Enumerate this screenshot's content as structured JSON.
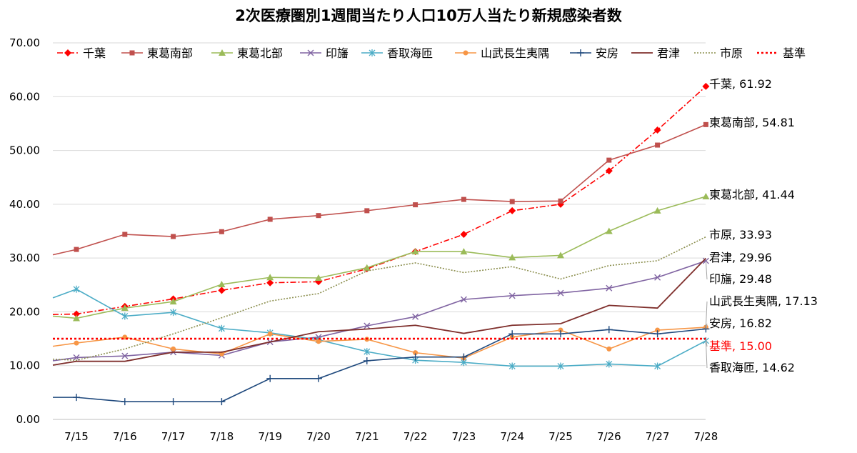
{
  "chart_data": {
    "type": "line",
    "title": "2次医療圏別1週間当たり人口10万人当たり新規感染者数",
    "categories": [
      "7/15",
      "7/16",
      "7/17",
      "7/18",
      "7/19",
      "7/20",
      "7/21",
      "7/22",
      "7/23",
      "7/24",
      "7/25",
      "7/26",
      "7/27",
      "7/28"
    ],
    "y_ticks": [
      "0.00",
      "10.00",
      "20.00",
      "30.00",
      "40.00",
      "50.00",
      "60.00",
      "70.00"
    ],
    "ylim": [
      0,
      70
    ],
    "grid": true,
    "legend_position": "top",
    "series": [
      {
        "name": "千葉",
        "color": "#ff0000",
        "marker": "diamond",
        "dash": "8,3,2,3",
        "width": 1.6,
        "lead": 19.5,
        "values": [
          19.6,
          21.0,
          22.4,
          24.0,
          25.4,
          25.6,
          28.0,
          31.2,
          34.4,
          38.8,
          40.0,
          46.2,
          53.8,
          61.92
        ],
        "end_label": "千葉, 61.92",
        "end_label_color": "#000000"
      },
      {
        "name": "東葛南部",
        "color": "#c0504d",
        "marker": "square",
        "dash": "",
        "width": 1.6,
        "lead": 30.6,
        "values": [
          31.6,
          34.4,
          34.0,
          34.9,
          37.2,
          37.9,
          38.8,
          39.9,
          40.9,
          40.5,
          40.6,
          48.2,
          51.0,
          54.81
        ],
        "end_label": "東葛南部, 54.81",
        "end_label_color": "#000000"
      },
      {
        "name": "東葛北部",
        "color": "#9bbb59",
        "marker": "triangle",
        "dash": "",
        "width": 1.6,
        "lead": 19.2,
        "values": [
          18.8,
          20.7,
          21.9,
          25.1,
          26.4,
          26.3,
          28.2,
          31.2,
          31.2,
          30.1,
          30.5,
          35.0,
          38.8,
          41.44
        ],
        "end_label": "東葛北部, 41.44",
        "end_label_color": "#000000"
      },
      {
        "name": "印旛",
        "color": "#8064a2",
        "marker": "x",
        "dash": "",
        "width": 1.6,
        "lead": 10.9,
        "values": [
          11.5,
          11.8,
          12.5,
          11.9,
          14.4,
          15.3,
          17.4,
          19.1,
          22.3,
          23.0,
          23.5,
          24.4,
          26.4,
          29.48
        ],
        "end_label": "印旛, 29.48",
        "end_label_color": "#000000"
      },
      {
        "name": "香取海匝",
        "color": "#4bacc6",
        "marker": "star",
        "dash": "",
        "width": 1.6,
        "lead": 22.6,
        "values": [
          24.2,
          19.2,
          19.9,
          16.9,
          16.1,
          14.8,
          12.6,
          11.0,
          10.6,
          9.9,
          9.9,
          10.3,
          9.9,
          14.62
        ],
        "end_label": "香取海匝, 14.62",
        "end_label_color": "#000000"
      },
      {
        "name": "山武長生夷隅",
        "color": "#f79646",
        "marker": "circle",
        "dash": "",
        "width": 1.6,
        "lead": 13.6,
        "values": [
          14.2,
          15.3,
          13.1,
          12.2,
          15.9,
          14.5,
          14.9,
          12.4,
          11.4,
          15.3,
          16.6,
          13.1,
          16.6,
          17.13
        ],
        "end_label": "山武長生夷隅, 17.13",
        "end_label_color": "#000000"
      },
      {
        "name": "安房",
        "color": "#1f497d",
        "marker": "plus",
        "dash": "",
        "width": 1.6,
        "lead": 4.1,
        "values": [
          4.1,
          3.3,
          3.3,
          3.3,
          7.6,
          7.6,
          10.9,
          11.6,
          11.6,
          15.9,
          15.9,
          16.7,
          15.9,
          16.82
        ],
        "end_label": "安房, 16.82",
        "end_label_color": "#000000"
      },
      {
        "name": "君津",
        "color": "#7f2f2c",
        "marker": "none",
        "dash": "",
        "width": 1.8,
        "lead": 10.1,
        "values": [
          10.8,
          10.8,
          12.5,
          12.5,
          14.4,
          16.3,
          16.8,
          17.5,
          16.0,
          17.5,
          17.8,
          21.2,
          20.7,
          29.96
        ],
        "end_label": "君津, 29.96",
        "end_label_color": "#000000"
      },
      {
        "name": "市原",
        "color": "#8c8f4f",
        "marker": "none",
        "dash": "2,2",
        "width": 1.6,
        "lead": 11.2,
        "values": [
          11.0,
          13.1,
          15.9,
          18.9,
          22.0,
          23.4,
          27.6,
          29.1,
          27.3,
          28.4,
          26.1,
          28.6,
          29.5,
          33.93
        ],
        "end_label": "市原, 33.93",
        "end_label_color": "#000000"
      },
      {
        "name": "基準",
        "color": "#ff0000",
        "marker": "none",
        "dash": "3,3",
        "width": 2.6,
        "lead": 15.0,
        "values": [
          15,
          15,
          15,
          15,
          15,
          15,
          15,
          15,
          15,
          15,
          15,
          15,
          15,
          15.0
        ],
        "end_label": "基準, 15.00",
        "end_label_color": "#ff0000"
      }
    ]
  }
}
